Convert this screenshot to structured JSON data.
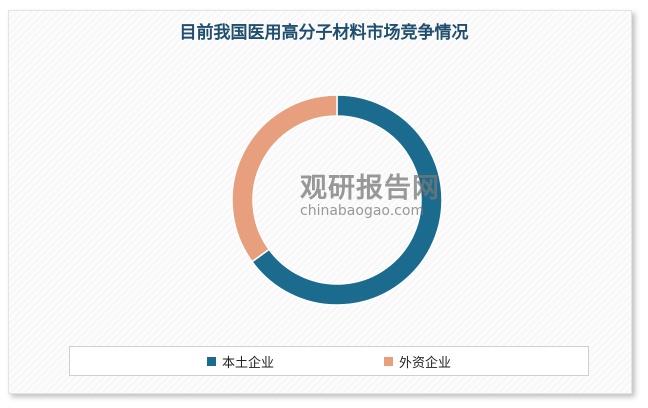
{
  "chart_data": {
    "type": "pie",
    "donut": true,
    "title": "目前我国医用高分子材料市场竞争情况",
    "categories": [
      "本土企业",
      "外资企业"
    ],
    "values": [
      65,
      35
    ],
    "colors": [
      "#1b6b8f",
      "#e89f7d"
    ],
    "legend_position": "bottom"
  },
  "watermark": {
    "cn": "观研报告网",
    "en": "chinabaogao.com"
  }
}
